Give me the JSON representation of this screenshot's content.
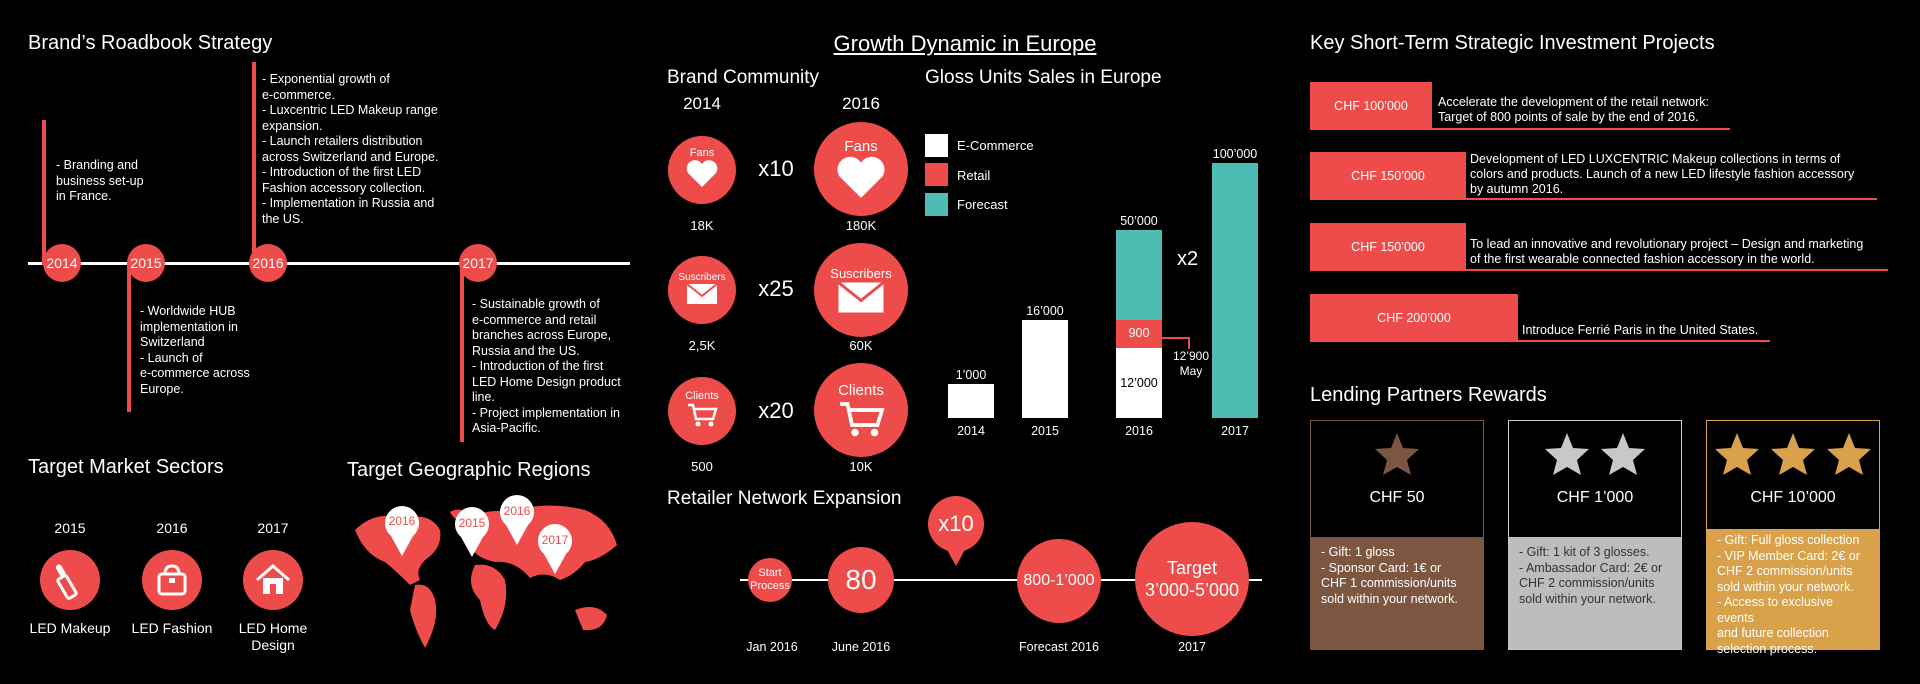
{
  "roadbook": {
    "title": "Brand’s Roadbook Strategy",
    "years": [
      "2014",
      "2015",
      "2016",
      "2017"
    ],
    "notes": {
      "y2014": "- Branding and\nbusiness set-up\nin France.",
      "y2015": "- Worldwide HUB\nimplementation in\nSwitzerland\n- Launch of\ne-commerce across\nEurope.",
      "y2016": "- Exponential growth of\ne-commerce.\n- Luxcentric LED Makeup range\nexpansion.\n- Launch retailers distribution\nacross Switzerland and Europe.\n- Introduction of the first LED\nFashion accessory collection.\n- Implementation in Russia and\nthe US.",
      "y2017": "- Sustainable growth of\ne-commerce and retail\nbranches across Europe,\nRussia and the US.\n- Introduction of the first\nLED Home Design product\nline.\n- Project implementation in\nAsia-Pacific."
    }
  },
  "sectors": {
    "title": "Target Market Sectors",
    "items": [
      {
        "year": "2015",
        "label": "LED Makeup",
        "icon": "lipstick-icon"
      },
      {
        "year": "2016",
        "label": "LED Fashion",
        "icon": "handbag-icon"
      },
      {
        "year": "2017",
        "label": "LED Home\nDesign",
        "icon": "house-icon"
      }
    ]
  },
  "regions": {
    "title": "Target Geographic Regions",
    "pins": [
      "2016",
      "2015",
      "2016",
      "2017"
    ]
  },
  "growth": {
    "title": "Growth Dynamic in Europe",
    "community": {
      "title": "Brand Community",
      "year_a": "2014",
      "year_b": "2016",
      "rows": [
        {
          "label": "Fans",
          "from": "18K",
          "to": "180K",
          "mult": "x10",
          "icon": "heart-icon"
        },
        {
          "label": "Suscribers",
          "from": "2,5K",
          "to": "60K",
          "mult": "x25",
          "icon": "envelope-icon"
        },
        {
          "label": "Clients",
          "from": "500",
          "to": "10K",
          "mult": "x20",
          "icon": "cart-icon"
        }
      ]
    },
    "sales": {
      "title": "Gloss Units Sales in Europe",
      "legend": [
        "E-Commerce",
        "Retail",
        "Forecast"
      ],
      "colors": {
        "ecommerce": "#ffffff",
        "retail": "#ee4c4a",
        "forecast": "#4dbdb3"
      },
      "x2": "x2",
      "note_900": "12’900\nMay"
    },
    "network": {
      "title": "Retailer Network Expansion",
      "x10": "x10",
      "nodes": [
        {
          "value": "Start\nProcess",
          "date": "Jan 2016"
        },
        {
          "value": "80",
          "date": "June 2016"
        },
        {
          "value": "800-1’000",
          "date": "Forecast 2016"
        },
        {
          "value": "Target\n3’000-5’000",
          "date": "2017"
        }
      ]
    }
  },
  "chart_data": {
    "type": "bar",
    "categories": [
      "2014",
      "2015",
      "2016",
      "2017"
    ],
    "series": [
      {
        "name": "E-Commerce",
        "values": [
          1000,
          16000,
          12000,
          null
        ]
      },
      {
        "name": "Retail",
        "values": [
          null,
          null,
          900,
          null
        ]
      },
      {
        "name": "Forecast",
        "values": [
          null,
          null,
          50000,
          100000
        ]
      }
    ],
    "value_labels": [
      "1’000",
      "16’000",
      "12’000",
      "900",
      "50’000",
      "100’000"
    ],
    "title": "Gloss Units Sales in Europe",
    "ylim": [
      0,
      100000
    ],
    "grid": false,
    "legend": "top-left"
  },
  "investments": {
    "title": "Key Short-Term Strategic Investment Projects",
    "items": [
      {
        "amount": "CHF 100’000",
        "text": "Accelerate the development of the retail network:\nTarget of 800 points of sale by the end of 2016."
      },
      {
        "amount": "CHF 150’000",
        "text": "Development of LED LUXCENTRIC Makeup collections in terms of\ncolors and products. Launch of a new LED lifestyle fashion accessory\nby autumn 2016."
      },
      {
        "amount": "CHF 150’000",
        "text": "To lead an innovative and revolutionary project – Design and marketing\nof the first wearable connected fashion accessory in the world."
      },
      {
        "amount": "CHF 200’000",
        "text": "Introduce Ferrié Paris in the United States."
      }
    ]
  },
  "rewards": {
    "title": "Lending Partners Rewards",
    "tiers": [
      {
        "amount": "CHF 50",
        "stars": 1,
        "star_color": "#7d5641",
        "border": "#7d5641",
        "bg": "#7d5641",
        "details": "- Gift: 1 gloss\n- Sponsor Card: 1€ or\nCHF 1 commission/units\nsold within your network."
      },
      {
        "amount": "CHF 1’000",
        "stars": 2,
        "star_color": "#c8c8c8",
        "border": "#c8c8c8",
        "bg": "#bdbdbd",
        "details": "- Gift: 1 kit of 3 glosses.\n- Ambassador Card: 2€ or\nCHF 2 commission/units\nsold within your network."
      },
      {
        "amount": "CHF 10’000",
        "stars": 3,
        "star_color": "#d9a24a",
        "border": "#d9a24a",
        "bg": "#d9a24a",
        "details": "- Gift: Full gloss collection\n- VIP Member Card: 2€ or\nCHF 2 commission/units\nsold within your network.\n- Access to exclusive events\nand future collection\nselection process."
      }
    ]
  }
}
